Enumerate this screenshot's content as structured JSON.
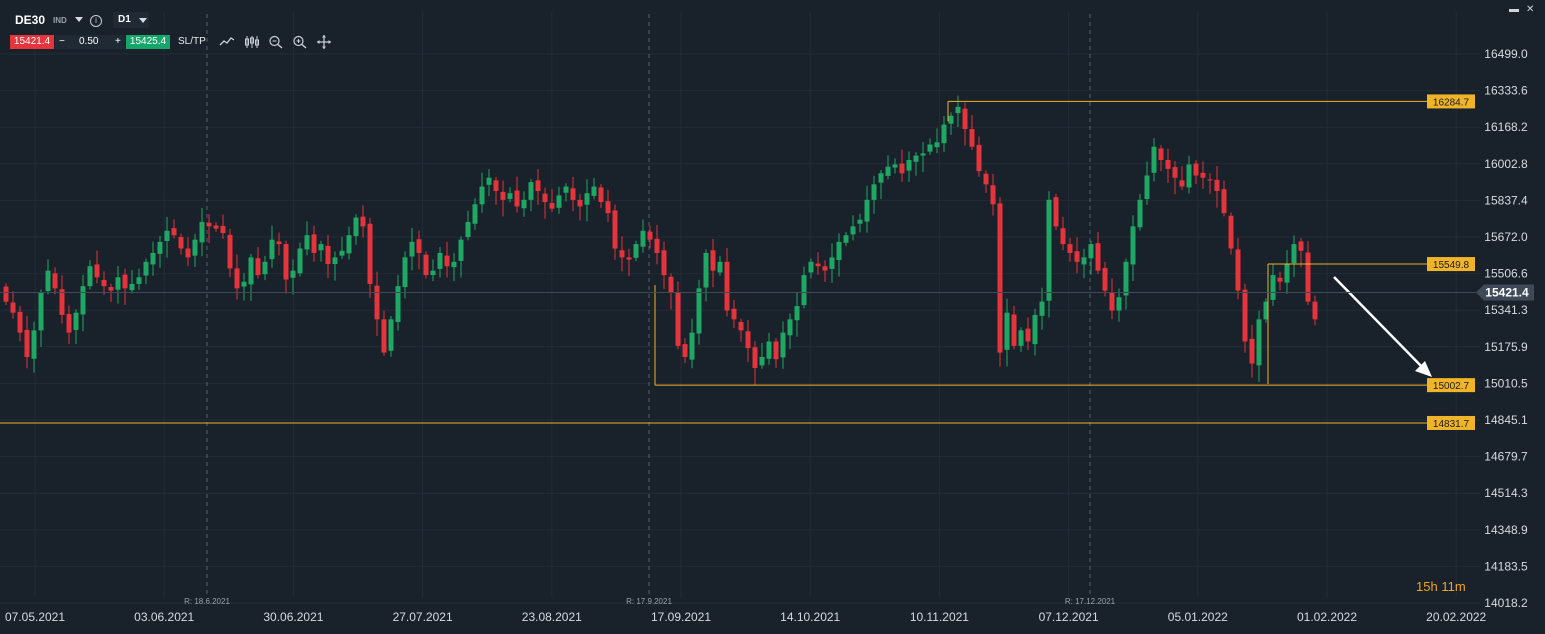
{
  "toolbar": {
    "symbol": "DE30",
    "symbol_type": "IND",
    "timeframe": "D1",
    "sell_price": "15421.4",
    "lot_minus": "−",
    "lot_size": "0.50",
    "lot_plus": "+",
    "buy_price": "15425.4",
    "sltp_label": "SL/TP",
    "icons": [
      "line-chart-icon",
      "candlestick-icon",
      "zoom-out-icon",
      "zoom-in-icon",
      "crosshair-icon"
    ]
  },
  "window_controls": {
    "minimize": "▬",
    "close": "✕"
  },
  "countdown": {
    "hours": "15h",
    "minutes": "11m"
  },
  "colors": {
    "background": "#19212b",
    "bull": "#1fa864",
    "bear": "#e5343b",
    "level": "#f0b429",
    "grid": "#222c37"
  },
  "chart_data": {
    "type": "candlestick",
    "symbol": "DE30",
    "timeframe": "D1",
    "x_ticks": [
      "07.05.2021",
      "03.06.2021",
      "30.06.2021",
      "27.07.2021",
      "23.08.2021",
      "17.09.2021",
      "14.10.2021",
      "10.11.2021",
      "07.12.2021",
      "05.01.2022",
      "01.02.2022",
      "20.02.2022"
    ],
    "y_ticks": [
      "16499.0",
      "16333.6",
      "16168.2",
      "16002.8",
      "15837.4",
      "15672.0",
      "15506.6",
      "15341.3",
      "15175.9",
      "15010.5",
      "14845.1",
      "14679.7",
      "14514.3",
      "14348.9",
      "14183.5",
      "14018.2"
    ],
    "y_range": [
      14018.2,
      16499.0
    ],
    "current_price": "15421.4",
    "levels": [
      "16284.7",
      "15549.8",
      "15002.7",
      "14831.7"
    ],
    "rollover_markers": [
      "R: 18.6.2021",
      "R: 17.9.2021",
      "R: 17.12.2021"
    ],
    "annotation": "arrow pointing down from ~15520 toward 15002.7 support",
    "close_path": [
      15380,
      15330,
      15240,
      15130,
      15250,
      15420,
      15520,
      15440,
      15320,
      15240,
      15330,
      15450,
      15540,
      15490,
      15450,
      15430,
      15490,
      15440,
      15460,
      15490,
      15560,
      15600,
      15650,
      15700,
      15680,
      15620,
      15580,
      15660,
      15740,
      15720,
      15710,
      15690,
      15530,
      15440,
      15470,
      15580,
      15500,
      15560,
      15660,
      15640,
      15480,
      15520,
      15620,
      15680,
      15600,
      15640,
      15550,
      15580,
      15610,
      15680,
      15760,
      15720,
      15460,
      15300,
      15150,
      15300,
      15450,
      15580,
      15650,
      15600,
      15500,
      15520,
      15600,
      15540,
      15560,
      15660,
      15740,
      15820,
      15900,
      15940,
      15880,
      15840,
      15870,
      15810,
      15840,
      15920,
      15880,
      15830,
      15800,
      15860,
      15900,
      15840,
      15810,
      15870,
      15900,
      15830,
      15780,
      15620,
      15580,
      15570,
      15640,
      15700,
      15660,
      15600,
      15500,
      15420,
      15180,
      15130,
      15240,
      15440,
      15600,
      15520,
      15560,
      15340,
      15300,
      15250,
      15170,
      15080,
      15130,
      15200,
      15120,
      15240,
      15300,
      15360,
      15500,
      15560,
      15540,
      15520,
      15580,
      15650,
      15680,
      15720,
      15750,
      15840,
      15910,
      15960,
      15990,
      16000,
      15960,
      16020,
      16040,
      16050,
      16090,
      16100,
      16180,
      16220,
      16260,
      16160,
      16080,
      15970,
      15910,
      15820,
      15150,
      15330,
      15180,
      15250,
      15200,
      15320,
      15380,
      15840,
      15720,
      15640,
      15600,
      15560,
      15580,
      15640,
      15520,
      15430,
      15340,
      15400,
      15560,
      15720,
      15840,
      15950,
      16080,
      16020,
      15980,
      15940,
      15900,
      16000,
      15950,
      15940,
      15930,
      15880,
      15780,
      15620,
      15430,
      15200,
      15100,
      15300,
      15380,
      15500,
      15470,
      15550,
      15640,
      15610,
      15380,
      15300
    ]
  }
}
